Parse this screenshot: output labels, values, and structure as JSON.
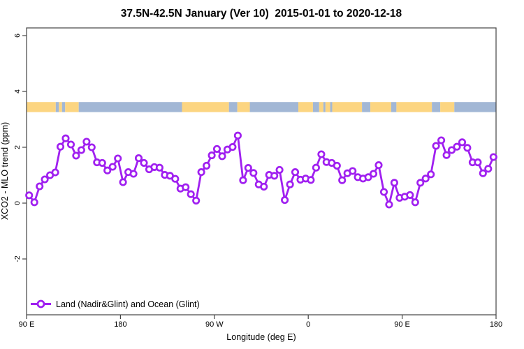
{
  "title": "37.5N-42.5N January (Ver 10)  2015-01-01 to 2020-12-18",
  "y_axis": {
    "label": "XCO2 - MLO trend (ppm)",
    "ticks": [
      6,
      4,
      2,
      0,
      -2
    ]
  },
  "x_axis": {
    "label": "Longitude (deg E)",
    "ticks": [
      {
        "lon": 90,
        "label": "90 E"
      },
      {
        "lon": 180,
        "label": "180"
      },
      {
        "lon": 270,
        "label": "90 W"
      },
      {
        "lon": 360,
        "label": "0"
      },
      {
        "lon": 450,
        "label": "90 E"
      },
      {
        "lon": 540,
        "label": "180"
      }
    ]
  },
  "legend": {
    "label": "Land (Nadir&Glint) and Ocean (Glint)"
  },
  "colors": {
    "series": "#A020F0",
    "marker_fill": "#ffffff",
    "land": "#FCD581",
    "ocean": "#A2B7D5",
    "axis": "#444444"
  },
  "chart_data": {
    "type": "line",
    "title": "37.5N-42.5N January (Ver 10)  2015-01-01 to 2020-12-18",
    "xlabel": "Longitude (deg E)",
    "ylabel": "XCO2 - MLO trend (ppm)",
    "xlim": [
      90,
      540
    ],
    "ylim": [
      -4,
      6.3
    ],
    "legend_position": "bottom-left",
    "series_name": "Land (Nadir&Glint) and Ocean (Glint)",
    "x_deg_east": [
      92.5,
      97.5,
      102.5,
      107.5,
      112.5,
      117.5,
      122.5,
      127.5,
      132.5,
      137.5,
      142.5,
      147.5,
      152.5,
      157.5,
      162.5,
      167.5,
      172.5,
      177.5,
      182.5,
      187.5,
      192.5,
      197.5,
      202.5,
      207.5,
      212.5,
      217.5,
      222.5,
      227.5,
      232.5,
      237.5,
      242.5,
      247.5,
      252.5,
      257.5,
      262.5,
      267.5,
      272.5,
      277.5,
      282.5,
      287.5,
      292.5,
      297.5,
      302.5,
      307.5,
      312.5,
      317.5,
      322.5,
      327.5,
      332.5,
      337.5,
      342.5,
      347.5,
      352.5,
      357.5,
      362.5,
      367.5,
      372.5,
      377.5,
      382.5,
      387.5,
      392.5,
      397.5,
      402.5,
      407.5,
      412.5,
      417.5,
      422.5,
      427.5,
      432.5,
      437.5,
      442.5,
      447.5,
      452.5,
      457.5,
      462.5,
      467.5,
      472.5,
      477.5,
      482.5,
      487.5,
      492.5,
      497.5,
      502.5,
      507.5,
      512.5,
      517.5,
      522.5,
      527.5,
      532.5,
      537.5
    ],
    "y_ppm": [
      0.28,
      0.03,
      0.6,
      0.85,
      1.0,
      1.1,
      2.02,
      2.32,
      2.1,
      1.7,
      1.9,
      2.2,
      2.0,
      1.46,
      1.44,
      1.17,
      1.3,
      1.6,
      0.75,
      1.11,
      1.05,
      1.61,
      1.44,
      1.21,
      1.29,
      1.27,
      1.01,
      0.98,
      0.87,
      0.52,
      0.57,
      0.32,
      0.09,
      1.11,
      1.34,
      1.71,
      1.94,
      1.68,
      1.92,
      2.01,
      2.42,
      0.82,
      1.26,
      1.08,
      0.67,
      0.59,
      1.01,
      0.98,
      1.19,
      0.11,
      0.67,
      1.11,
      0.84,
      0.88,
      0.83,
      1.27,
      1.75,
      1.47,
      1.44,
      1.34,
      0.82,
      1.07,
      1.15,
      0.93,
      0.88,
      0.93,
      1.05,
      1.36,
      0.4,
      -0.05,
      0.73,
      0.19,
      0.23,
      0.29,
      0.03,
      0.73,
      0.88,
      1.03,
      2.05,
      2.25,
      1.72,
      1.9,
      2.02,
      2.18,
      1.98,
      1.46,
      1.46,
      1.07,
      1.23,
      1.65
    ],
    "map_band": {
      "y_range_ppm": [
        3.26,
        3.62
      ],
      "segments": [
        {
          "from": 90,
          "to": 118,
          "type": "land"
        },
        {
          "from": 118,
          "to": 121,
          "type": "ocean"
        },
        {
          "from": 121,
          "to": 124,
          "type": "land"
        },
        {
          "from": 124,
          "to": 127,
          "type": "ocean"
        },
        {
          "from": 127,
          "to": 140,
          "type": "land"
        },
        {
          "from": 140,
          "to": 239,
          "type": "ocean"
        },
        {
          "from": 239,
          "to": 284,
          "type": "land"
        },
        {
          "from": 284,
          "to": 292,
          "type": "ocean"
        },
        {
          "from": 292,
          "to": 304,
          "type": "land"
        },
        {
          "from": 304,
          "to": 350.5,
          "type": "ocean"
        },
        {
          "from": 350.5,
          "to": 364.5,
          "type": "land"
        },
        {
          "from": 364.5,
          "to": 370.5,
          "type": "ocean"
        },
        {
          "from": 370.5,
          "to": 374.5,
          "type": "land"
        },
        {
          "from": 374.5,
          "to": 376.5,
          "type": "ocean"
        },
        {
          "from": 376.5,
          "to": 381,
          "type": "land"
        },
        {
          "from": 381,
          "to": 383,
          "type": "ocean"
        },
        {
          "from": 383,
          "to": 411.5,
          "type": "land"
        },
        {
          "from": 411.5,
          "to": 419.5,
          "type": "ocean"
        },
        {
          "from": 419.5,
          "to": 439.5,
          "type": "land"
        },
        {
          "from": 439.5,
          "to": 444.5,
          "type": "ocean"
        },
        {
          "from": 444.5,
          "to": 478.5,
          "type": "land"
        },
        {
          "from": 478.5,
          "to": 486.5,
          "type": "ocean"
        },
        {
          "from": 486.5,
          "to": 500,
          "type": "land"
        },
        {
          "from": 500,
          "to": 540,
          "type": "ocean"
        }
      ]
    }
  }
}
